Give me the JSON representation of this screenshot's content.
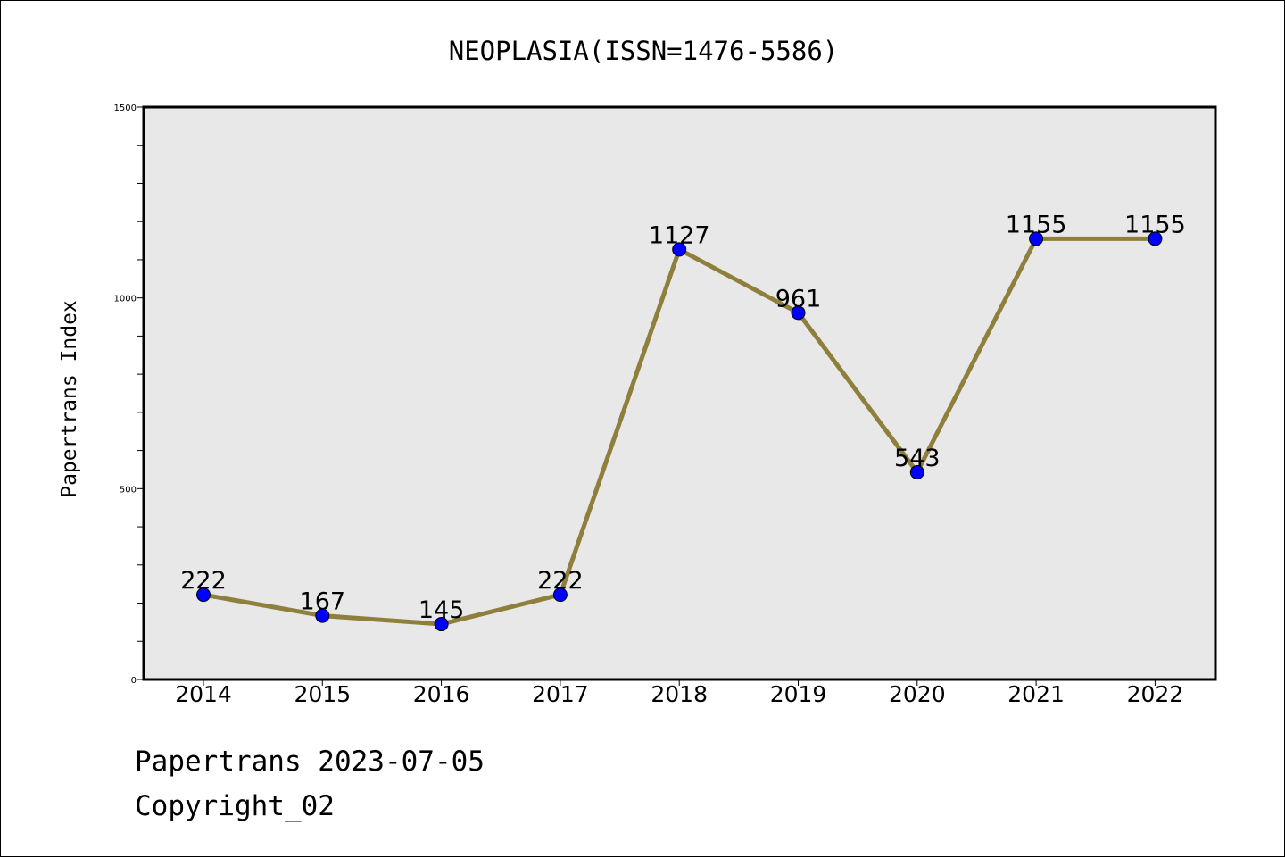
{
  "chart_data": {
    "type": "line",
    "title": "NEOPLASIA(ISSN=1476-5586)",
    "xlabel": "",
    "ylabel": "Papertrans Index",
    "categories": [
      "2014",
      "2015",
      "2016",
      "2017",
      "2018",
      "2019",
      "2020",
      "2021",
      "2022"
    ],
    "series": [
      {
        "values": [
          222,
          167,
          145,
          222,
          1127,
          961,
          543,
          1155,
          1155
        ]
      }
    ],
    "data_labels": [
      "222",
      "167",
      "145",
      "222",
      "1127",
      "961",
      "543",
      "1155",
      "1155"
    ],
    "ylim": [
      0,
      1500
    ],
    "y_ticks": [
      0,
      500,
      1000,
      1500
    ],
    "y_tick_labels": [
      "0",
      "500",
      "1000",
      "1500"
    ],
    "y_minor_step": 100,
    "grid": false,
    "colors": {
      "line": "#8f7f3c",
      "marker": "#0000ff",
      "plot_background": "#e8e8e8"
    }
  },
  "footer": {
    "date_line": "Papertrans 2023-07-05",
    "copyright": "Copyright_02"
  }
}
